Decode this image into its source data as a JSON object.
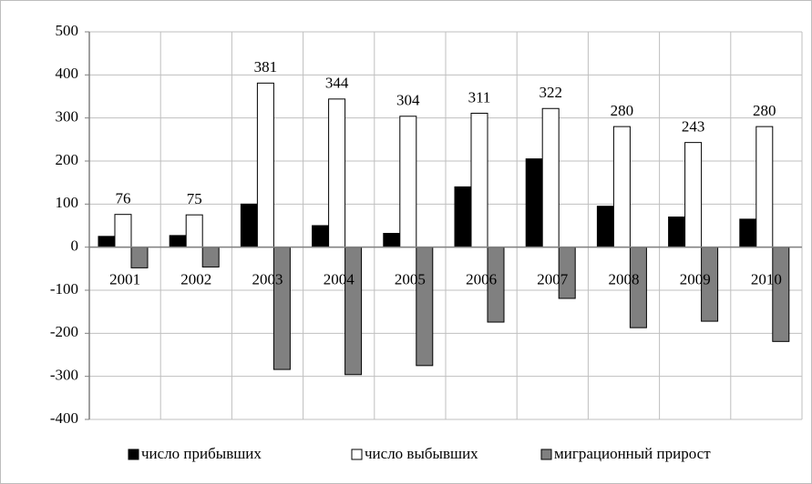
{
  "chart_data": {
    "type": "bar",
    "categories": [
      "2001",
      "2002",
      "2003",
      "2004",
      "2005",
      "2006",
      "2007",
      "2008",
      "2009",
      "2010"
    ],
    "series": [
      {
        "name": "число прибывших",
        "color": "#000000",
        "values": [
          25,
          27,
          100,
          50,
          32,
          140,
          205,
          95,
          70,
          65
        ]
      },
      {
        "name": "число выбывших",
        "color": "#ffffff",
        "values": [
          76,
          75,
          381,
          344,
          304,
          311,
          322,
          280,
          243,
          280
        ],
        "show_labels": true
      },
      {
        "name": "миграционный прирост",
        "color": "#808080",
        "values": [
          -48,
          -46,
          -284,
          -296,
          -275,
          -174,
          -119,
          -187,
          -172,
          -219
        ]
      }
    ],
    "ylim": [
      -400,
      500
    ],
    "yticks": [
      -400,
      -300,
      -200,
      -100,
      0,
      100,
      200,
      300,
      400,
      500
    ],
    "grid": true,
    "legend": "bottom"
  }
}
